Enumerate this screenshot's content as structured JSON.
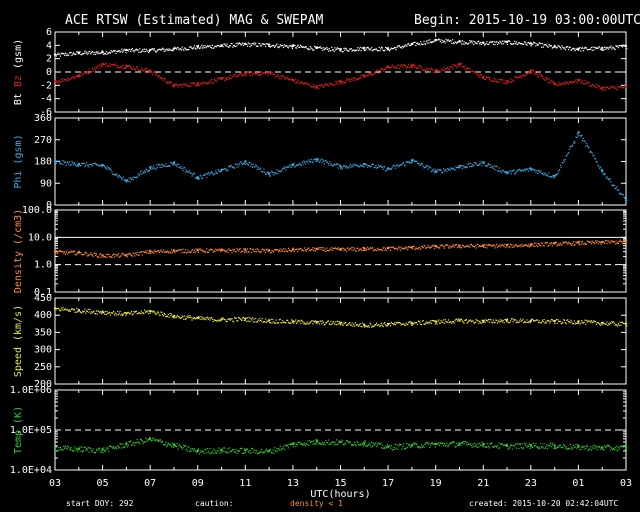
{
  "header": {
    "title": "ACE RTSW (Estimated) MAG & SWEPAM",
    "begin": "Begin: 2015-10-19 03:00:00UTC"
  },
  "footer": {
    "start_doy": "start DOY: 292",
    "caution": "caution:",
    "density_note": "density < 1",
    "created": "created: 2015-10-20 02:42:04UTC"
  },
  "xaxis": {
    "label": "UTC(hours)",
    "ticks": [
      "03",
      "05",
      "07",
      "09",
      "11",
      "13",
      "15",
      "17",
      "19",
      "21",
      "23",
      "01",
      "03"
    ]
  },
  "colors": {
    "bt": "#ffffff",
    "bz": "#e02020",
    "phi": "#3fa9e0",
    "density": "#ff8a3a",
    "speed": "#e8e84a",
    "temp": "#33cc33",
    "axis": "#ffffff"
  },
  "chart_data": [
    {
      "type": "scatter",
      "title": "Bt Bz (gsm)",
      "ylabel_parts": [
        "Bt",
        "Bz",
        "(gsm)"
      ],
      "ylim": [
        -6,
        6
      ],
      "yticks": [
        "6",
        "4",
        "2",
        "0",
        "-2",
        "-4",
        "-6"
      ],
      "dashed": [
        0
      ],
      "series": [
        {
          "name": "Bt",
          "color_key": "bt",
          "x": [
            0,
            1,
            2,
            3,
            4,
            5,
            6,
            7,
            8,
            9,
            10,
            11,
            12,
            13,
            14,
            15,
            16,
            17,
            18,
            19,
            20,
            21,
            22,
            23,
            24
          ],
          "y": [
            2.6,
            2.9,
            3.0,
            3.3,
            3.3,
            3.5,
            3.8,
            4.0,
            4.2,
            4.1,
            3.9,
            3.6,
            3.4,
            3.6,
            3.5,
            4.2,
            4.8,
            4.6,
            4.4,
            4.5,
            4.3,
            3.8,
            3.5,
            3.6,
            3.9
          ]
        },
        {
          "name": "Bz",
          "color_key": "bz",
          "x": [
            0,
            1,
            2,
            3,
            4,
            5,
            6,
            7,
            8,
            9,
            10,
            11,
            12,
            13,
            14,
            15,
            16,
            17,
            18,
            19,
            20,
            21,
            22,
            23,
            24
          ],
          "y": [
            -1.4,
            -0.5,
            1.2,
            0.9,
            0.2,
            -2.0,
            -1.7,
            -1.0,
            -0.2,
            -0.1,
            -1.2,
            -2.2,
            -1.4,
            -0.6,
            0.8,
            1.0,
            0.2,
            1.2,
            -0.8,
            -1.4,
            0.2,
            -1.8,
            -1.2,
            -2.4,
            -2.2
          ]
        }
      ]
    },
    {
      "type": "scatter",
      "title": "Phi (gsm)",
      "ylabel_parts": [
        "Phi (gsm)"
      ],
      "ylim": [
        0,
        360
      ],
      "yticks": [
        "360",
        "270",
        "180",
        "90",
        "0"
      ],
      "dashed": [],
      "series": [
        {
          "name": "Phi",
          "color_key": "phi",
          "x": [
            0,
            1,
            2,
            3,
            4,
            5,
            6,
            7,
            8,
            9,
            10,
            11,
            12,
            13,
            14,
            15,
            16,
            17,
            18,
            19,
            20,
            21,
            22,
            23,
            24
          ],
          "y": [
            180,
            170,
            165,
            100,
            155,
            175,
            115,
            145,
            180,
            130,
            165,
            190,
            160,
            170,
            150,
            185,
            140,
            160,
            175,
            135,
            150,
            120,
            300,
            140,
            20
          ]
        }
      ]
    },
    {
      "type": "scatter",
      "title": "Density (/cm3)",
      "ylabel_parts": [
        "Density (/cm3)"
      ],
      "yscale": "log",
      "ylim": [
        0.1,
        100
      ],
      "yticks": [
        "100.0",
        "10.0",
        "1.0",
        "0.1"
      ],
      "dashed": [
        1.0
      ],
      "solid": [
        10.0
      ],
      "series": [
        {
          "name": "Density",
          "color_key": "density",
          "x": [
            0,
            1,
            2,
            3,
            4,
            5,
            6,
            7,
            8,
            9,
            10,
            11,
            12,
            13,
            14,
            15,
            16,
            17,
            18,
            19,
            20,
            21,
            22,
            23,
            24
          ],
          "y": [
            3.0,
            2.8,
            2.2,
            2.3,
            3.1,
            3.3,
            3.4,
            3.4,
            3.5,
            3.3,
            3.6,
            3.8,
            3.7,
            3.9,
            4.0,
            4.3,
            4.7,
            5.0,
            5.0,
            5.1,
            5.5,
            6.0,
            6.4,
            6.8,
            7.2
          ]
        }
      ]
    },
    {
      "type": "scatter",
      "title": "Speed (km/s)",
      "ylabel_parts": [
        "Speed (km/s)"
      ],
      "ylim": [
        200,
        450
      ],
      "yticks": [
        "450",
        "400",
        "350",
        "300",
        "250",
        "200"
      ],
      "dashed": [],
      "series": [
        {
          "name": "Speed",
          "color_key": "speed",
          "x": [
            0,
            1,
            2,
            3,
            4,
            5,
            6,
            7,
            8,
            9,
            10,
            11,
            12,
            13,
            14,
            15,
            16,
            17,
            18,
            19,
            20,
            21,
            22,
            23,
            24
          ],
          "y": [
            420,
            415,
            410,
            405,
            412,
            398,
            392,
            388,
            390,
            385,
            382,
            380,
            378,
            372,
            375,
            378,
            382,
            385,
            383,
            386,
            384,
            383,
            382,
            378,
            375
          ]
        }
      ]
    },
    {
      "type": "scatter",
      "title": "Temp (K)",
      "ylabel_parts": [
        "Temp (K)"
      ],
      "yscale": "log",
      "ylim": [
        10000,
        1000000
      ],
      "yticks": [
        "1.0E+06",
        "1.0E+05",
        "1.0E+04"
      ],
      "dashed": [
        100000
      ],
      "series": [
        {
          "name": "Temp",
          "color_key": "temp",
          "x": [
            0,
            1,
            2,
            3,
            4,
            5,
            6,
            7,
            8,
            9,
            10,
            11,
            12,
            13,
            14,
            15,
            16,
            17,
            18,
            19,
            20,
            21,
            22,
            23,
            24
          ],
          "y": [
            36000,
            34000,
            32000,
            45000,
            60000,
            42000,
            30000,
            32000,
            31000,
            30000,
            45000,
            52000,
            50000,
            48000,
            38000,
            42000,
            45000,
            46000,
            44000,
            40000,
            42000,
            41000,
            38000,
            37000,
            36000
          ]
        }
      ]
    }
  ]
}
